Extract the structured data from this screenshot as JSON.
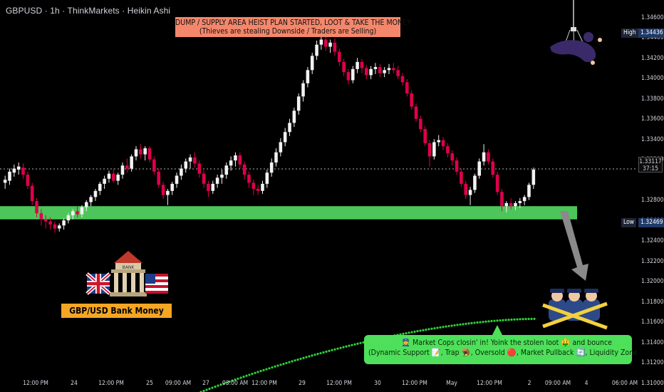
{
  "header": {
    "title": "GBPUSD · 1h · ThinkMarkets · Heikin Ashi"
  },
  "banner": {
    "line1": "DUMP / SUPPLY AREA HEIST PLAN STARTED, LOOT & TAKE THE MONEY",
    "line2": "(Thieves are stealing Downside / Traders are Selling)"
  },
  "heist_label": "GBP/USD Bank Money Heist Plan",
  "bank_sign": "BANK",
  "cops_note": {
    "line1": "👮 Market Cops closin' in! Yoink the stolen loot 🤑 and bounce",
    "line2": "(Dynamic Support 📝, Trap 🪤, Oversold 🔴, Market Pullback 🔄, Liquidity Zone 💱)"
  },
  "price_axis": {
    "ticks": [
      "1.34600",
      "1.34400",
      "1.34200",
      "1.34000",
      "1.33800",
      "1.33600",
      "1.33400",
      "1.33200",
      "1.32800",
      "1.32600",
      "1.32400",
      "1.32200",
      "1.32000",
      "1.31800",
      "1.31600",
      "1.31400",
      "1.31200",
      "1.31000"
    ],
    "high": {
      "label": "High",
      "value": "1.34436"
    },
    "low": {
      "label": "Low",
      "value": "1.32469"
    },
    "last": {
      "value": "1.33117",
      "countdown": "37:15"
    }
  },
  "time_axis": {
    "ticks": [
      "12:00 PM",
      "24",
      "12:00 PM",
      "25",
      "09:00 AM",
      "27",
      "03:00 AM",
      "12:00 PM",
      "29",
      "12:00 PM",
      "30",
      "12:00 PM",
      "May",
      "12:00 PM",
      "2",
      "09:00 AM",
      "4",
      "06:00 AM"
    ]
  },
  "colors": {
    "bull": "#f2f2f2",
    "bear": "#e0004d",
    "zone": "#4cc65a",
    "ema": "#2fd13a",
    "banner": "#f4876b",
    "label": "#f5a623",
    "bubble": "#4ee05a"
  },
  "chart_data": {
    "type": "candlestick",
    "style": "Heikin Ashi",
    "symbol": "GBPUSD",
    "timeframe": "1h",
    "ylim": [
      1.3092,
      1.3478
    ],
    "high": 1.34436,
    "low": 1.32469,
    "last": 1.33117,
    "demand_zone": [
      1.3262,
      1.3275
    ],
    "ema_start": 1.3091,
    "ema_end": 1.3164,
    "candles": [
      [
        1.3298,
        1.3305,
        1.3292,
        1.3301
      ],
      [
        1.33,
        1.3312,
        1.3296,
        1.3309
      ],
      [
        1.3308,
        1.3316,
        1.3304,
        1.3312
      ],
      [
        1.3311,
        1.3318,
        1.3306,
        1.3314
      ],
      [
        1.3313,
        1.3317,
        1.3302,
        1.3306
      ],
      [
        1.3306,
        1.3309,
        1.3292,
        1.3295
      ],
      [
        1.3295,
        1.3298,
        1.3276,
        1.328
      ],
      [
        1.328,
        1.3283,
        1.3264,
        1.3268
      ],
      [
        1.3268,
        1.3272,
        1.3256,
        1.3262
      ],
      [
        1.3262,
        1.3266,
        1.3253,
        1.326
      ],
      [
        1.326,
        1.3264,
        1.3252,
        1.3257
      ],
      [
        1.3257,
        1.326,
        1.3249,
        1.3253
      ],
      [
        1.3253,
        1.3258,
        1.325,
        1.3256
      ],
      [
        1.3256,
        1.3263,
        1.3252,
        1.3261
      ],
      [
        1.3261,
        1.3268,
        1.3258,
        1.3266
      ],
      [
        1.3266,
        1.3272,
        1.3262,
        1.327
      ],
      [
        1.327,
        1.3275,
        1.3264,
        1.3267
      ],
      [
        1.3267,
        1.3276,
        1.3264,
        1.3274
      ],
      [
        1.3274,
        1.3281,
        1.327,
        1.3279
      ],
      [
        1.3279,
        1.3286,
        1.3275,
        1.3284
      ],
      [
        1.3284,
        1.3292,
        1.328,
        1.329
      ],
      [
        1.329,
        1.3299,
        1.3286,
        1.3297
      ],
      [
        1.3297,
        1.3305,
        1.3292,
        1.3302
      ],
      [
        1.3302,
        1.331,
        1.3298,
        1.3307
      ],
      [
        1.3307,
        1.3312,
        1.3298,
        1.33
      ],
      [
        1.33,
        1.3308,
        1.3296,
        1.3306
      ],
      [
        1.3306,
        1.3318,
        1.3302,
        1.3315
      ],
      [
        1.3315,
        1.3322,
        1.3308,
        1.3312
      ],
      [
        1.3312,
        1.3326,
        1.3309,
        1.3324
      ],
      [
        1.3324,
        1.3334,
        1.332,
        1.3331
      ],
      [
        1.3331,
        1.3336,
        1.3322,
        1.3326
      ],
      [
        1.3326,
        1.3334,
        1.332,
        1.3332
      ],
      [
        1.3332,
        1.3334,
        1.3318,
        1.3321
      ],
      [
        1.3321,
        1.3324,
        1.3306,
        1.3309
      ],
      [
        1.3309,
        1.3312,
        1.3293,
        1.3296
      ],
      [
        1.3296,
        1.3299,
        1.3282,
        1.3286
      ],
      [
        1.3286,
        1.3292,
        1.3276,
        1.329
      ],
      [
        1.329,
        1.3299,
        1.3286,
        1.3297
      ],
      [
        1.3297,
        1.3308,
        1.3293,
        1.3305
      ],
      [
        1.3305,
        1.3316,
        1.3301,
        1.3312
      ],
      [
        1.3312,
        1.3322,
        1.3308,
        1.3319
      ],
      [
        1.3319,
        1.3326,
        1.3312,
        1.3323
      ],
      [
        1.3323,
        1.3328,
        1.3313,
        1.3317
      ],
      [
        1.3317,
        1.332,
        1.3303,
        1.3307
      ],
      [
        1.3307,
        1.331,
        1.3293,
        1.3297
      ],
      [
        1.3297,
        1.33,
        1.3284,
        1.329
      ],
      [
        1.329,
        1.33,
        1.3287,
        1.3297
      ],
      [
        1.3297,
        1.3306,
        1.3293,
        1.3303
      ],
      [
        1.3303,
        1.3311,
        1.3297,
        1.3306
      ],
      [
        1.3306,
        1.3318,
        1.3302,
        1.3315
      ],
      [
        1.3315,
        1.3324,
        1.331,
        1.332
      ],
      [
        1.332,
        1.3328,
        1.3314,
        1.3325
      ],
      [
        1.3325,
        1.3328,
        1.3312,
        1.3316
      ],
      [
        1.3316,
        1.3319,
        1.3301,
        1.3306
      ],
      [
        1.3306,
        1.3309,
        1.3293,
        1.3298
      ],
      [
        1.3298,
        1.3301,
        1.3286,
        1.3292
      ],
      [
        1.3292,
        1.3296,
        1.3286,
        1.329
      ],
      [
        1.329,
        1.33,
        1.3287,
        1.3297
      ],
      [
        1.3297,
        1.3311,
        1.3293,
        1.3308
      ],
      [
        1.3308,
        1.3322,
        1.3304,
        1.3318
      ],
      [
        1.3318,
        1.3332,
        1.3314,
        1.3328
      ],
      [
        1.3328,
        1.3342,
        1.3324,
        1.3338
      ],
      [
        1.3338,
        1.3352,
        1.3334,
        1.3348
      ],
      [
        1.3348,
        1.3361,
        1.3344,
        1.3357
      ],
      [
        1.3357,
        1.3372,
        1.3353,
        1.3369
      ],
      [
        1.3369,
        1.3386,
        1.3365,
        1.3383
      ],
      [
        1.3383,
        1.3399,
        1.3378,
        1.3396
      ],
      [
        1.3396,
        1.3412,
        1.3392,
        1.3409
      ],
      [
        1.3409,
        1.3426,
        1.3405,
        1.3423
      ],
      [
        1.3423,
        1.3438,
        1.3419,
        1.3434
      ],
      [
        1.3434,
        1.3444,
        1.3429,
        1.3439
      ],
      [
        1.3439,
        1.3443,
        1.3428,
        1.3432
      ],
      [
        1.3432,
        1.3439,
        1.3426,
        1.3436
      ],
      [
        1.3436,
        1.344,
        1.3423,
        1.3427
      ],
      [
        1.3427,
        1.343,
        1.3413,
        1.3417
      ],
      [
        1.3417,
        1.342,
        1.3403,
        1.3407
      ],
      [
        1.3407,
        1.341,
        1.3395,
        1.3399
      ],
      [
        1.3399,
        1.3413,
        1.3396,
        1.341
      ],
      [
        1.341,
        1.3421,
        1.3406,
        1.3417
      ],
      [
        1.3417,
        1.342,
        1.3406,
        1.3411
      ],
      [
        1.3411,
        1.3414,
        1.34,
        1.3404
      ],
      [
        1.3404,
        1.3413,
        1.34,
        1.341
      ],
      [
        1.341,
        1.3416,
        1.3405,
        1.3412
      ],
      [
        1.3412,
        1.3415,
        1.3402,
        1.3406
      ],
      [
        1.3406,
        1.3412,
        1.3402,
        1.3409
      ],
      [
        1.3409,
        1.3415,
        1.3405,
        1.3411
      ],
      [
        1.3411,
        1.3416,
        1.3406,
        1.3409
      ],
      [
        1.3409,
        1.3413,
        1.34,
        1.3403
      ],
      [
        1.3403,
        1.3406,
        1.3394,
        1.3397
      ],
      [
        1.3397,
        1.34,
        1.3383,
        1.3386
      ],
      [
        1.3386,
        1.3389,
        1.337,
        1.3373
      ],
      [
        1.3373,
        1.3376,
        1.3358,
        1.3361
      ],
      [
        1.3361,
        1.3364,
        1.3348,
        1.3351
      ],
      [
        1.3351,
        1.3354,
        1.3334,
        1.3337
      ],
      [
        1.3337,
        1.334,
        1.3314,
        1.3324
      ],
      [
        1.3324,
        1.3341,
        1.3321,
        1.3338
      ],
      [
        1.3338,
        1.3345,
        1.3334,
        1.334
      ],
      [
        1.334,
        1.3343,
        1.333,
        1.3334
      ],
      [
        1.3334,
        1.3337,
        1.3323,
        1.3327
      ],
      [
        1.3327,
        1.333,
        1.3315,
        1.332
      ],
      [
        1.332,
        1.3323,
        1.3306,
        1.3309
      ],
      [
        1.3309,
        1.3312,
        1.3294,
        1.3297
      ],
      [
        1.3297,
        1.33,
        1.3282,
        1.3286
      ],
      [
        1.3286,
        1.3294,
        1.3276,
        1.3291
      ],
      [
        1.3291,
        1.3307,
        1.3288,
        1.3305
      ],
      [
        1.3305,
        1.3322,
        1.3302,
        1.3319
      ],
      [
        1.3319,
        1.3336,
        1.3315,
        1.3328
      ],
      [
        1.3328,
        1.3331,
        1.3316,
        1.3319
      ],
      [
        1.3319,
        1.3322,
        1.3303,
        1.3306
      ],
      [
        1.3306,
        1.3309,
        1.3286,
        1.3289
      ],
      [
        1.3289,
        1.3292,
        1.327,
        1.3275
      ],
      [
        1.3275,
        1.328,
        1.3269,
        1.3278
      ],
      [
        1.3278,
        1.3283,
        1.3272,
        1.3275
      ],
      [
        1.3275,
        1.328,
        1.3271,
        1.3278
      ],
      [
        1.3278,
        1.3283,
        1.3273,
        1.328
      ],
      [
        1.328,
        1.3286,
        1.3276,
        1.3284
      ],
      [
        1.3284,
        1.3298,
        1.3281,
        1.3296
      ],
      [
        1.3296,
        1.3313,
        1.3292,
        1.3311
      ]
    ]
  }
}
